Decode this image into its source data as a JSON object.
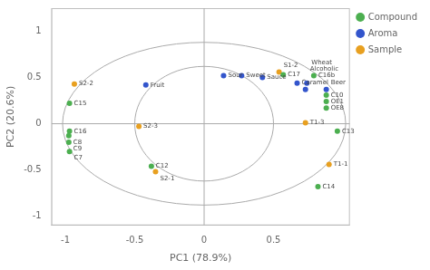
{
  "chart_data": {
    "type": "scatter",
    "xlabel": "PC1 (78.9%)",
    "ylabel": "PC2 (20.6%)",
    "xlim": [
      -1.1,
      1.05
    ],
    "ylim": [
      -1.1,
      1.25
    ],
    "xticks": [
      -1,
      -0.5,
      0,
      0.5
    ],
    "yticks": [
      -1,
      -0.5,
      0,
      0.5,
      1
    ],
    "grid": false,
    "legend": "right",
    "hlines": [
      0
    ],
    "vlines": [
      0
    ],
    "ellipses": [
      {
        "x": 0,
        "y": 0,
        "rx": 0.5,
        "ry": 0.62
      },
      {
        "x": 0,
        "y": 0,
        "rx": 1.02,
        "ry": 0.88
      }
    ],
    "series": [
      {
        "name": "Compound",
        "color": "#4caf50",
        "labels": [
          "C15",
          "C16",
          "C8",
          "C9",
          "C7",
          "C12",
          "C17",
          "C16b",
          "C10",
          "OE1",
          "OE8",
          "C13",
          "C14"
        ],
        "x": [
          -0.97,
          -0.97,
          -0.975,
          -0.975,
          -0.97,
          -0.38,
          0.57,
          0.79,
          0.88,
          0.88,
          0.88,
          0.96,
          0.82
        ],
        "y": [
          0.22,
          -0.08,
          -0.13,
          -0.2,
          -0.3,
          -0.46,
          0.53,
          0.52,
          0.31,
          0.24,
          0.17,
          -0.08,
          -0.68
        ]
      },
      {
        "name": "Aroma",
        "color": "#3355cc",
        "labels": [
          "Sour",
          "Sweet",
          "Sauce",
          "Caramel",
          "Wheat",
          "Alcoholic",
          "Beer",
          "Fruit"
        ],
        "x": [
          0.14,
          0.27,
          0.42,
          0.67,
          0.74,
          0.73,
          0.88,
          -0.42
        ],
        "y": [
          0.52,
          0.52,
          0.5,
          0.44,
          0.44,
          0.37,
          0.37,
          0.42
        ]
      },
      {
        "name": "Sample",
        "color": "#e8a020",
        "labels": [
          "S2-2",
          "S2-3",
          "S2-1",
          "S1-2",
          "T1-3",
          "T1-1"
        ],
        "x": [
          -0.935,
          -0.47,
          -0.35,
          0.54,
          0.73,
          0.9
        ],
        "y": [
          0.43,
          -0.03,
          -0.52,
          0.56,
          0.01,
          -0.44
        ]
      }
    ]
  }
}
